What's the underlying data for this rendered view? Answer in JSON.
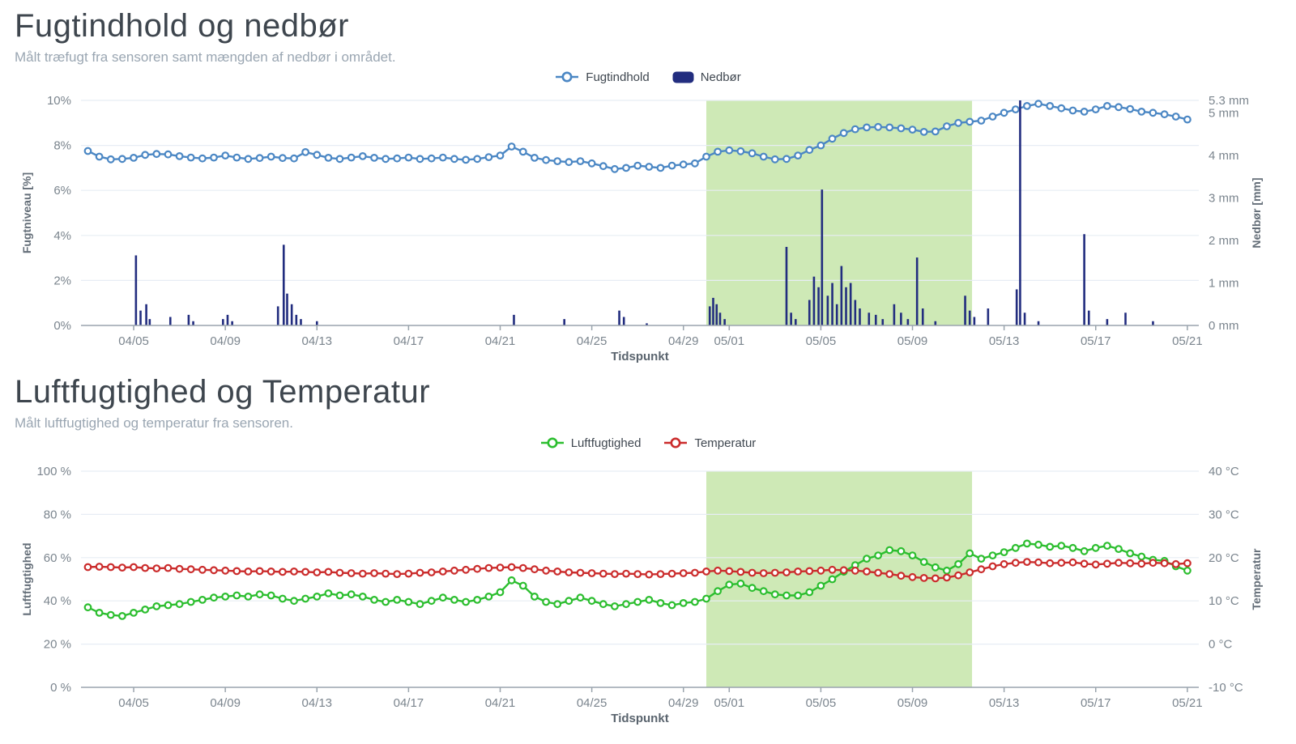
{
  "chart_data": [
    {
      "type": "line+bar",
      "title": "Fugtindhold og nedbør",
      "subtitle": "Målt træfugt fra sensoren samt mængden af nedbør i området.",
      "x_label": "Tidspunkt",
      "x_start_date": "04/03",
      "x_step_days": 0.5,
      "x_tick_days": [
        2,
        6,
        10,
        14,
        18,
        22,
        26,
        28,
        32,
        36,
        40,
        44,
        48
      ],
      "x_tick_labels": [
        "04/05",
        "04/09",
        "04/13",
        "04/17",
        "04/21",
        "04/25",
        "04/29",
        "05/01",
        "05/05",
        "05/09",
        "05/13",
        "05/17",
        "05/21"
      ],
      "left_axis": {
        "label": "Fugtniveau [%]",
        "min": 0,
        "max": 10,
        "tick_values": [
          0,
          2,
          4,
          6,
          8,
          10
        ],
        "tick_labels": [
          "0%",
          "2%",
          "4%",
          "6%",
          "8%",
          "10%"
        ]
      },
      "right_axis": {
        "label": "Nedbør [mm]",
        "min": 0,
        "max": 5.3,
        "tick_values": [
          0,
          1,
          2,
          3,
          4,
          5,
          5.3
        ],
        "tick_labels": [
          "0 mm",
          "1 mm",
          "2 mm",
          "3 mm",
          "4 mm",
          "5 mm",
          "5.3 mm"
        ]
      },
      "highlight_region": {
        "start_day": 27,
        "end_day": 38.6,
        "color": "#cee9b6"
      },
      "series": [
        {
          "name": "Fugtindhold",
          "type": "line",
          "axis": "left",
          "unit": "%",
          "color": "#4b87c4",
          "values": [
            7.75,
            7.5,
            7.38,
            7.4,
            7.45,
            7.58,
            7.62,
            7.6,
            7.52,
            7.46,
            7.42,
            7.46,
            7.55,
            7.46,
            7.4,
            7.44,
            7.5,
            7.44,
            7.42,
            7.7,
            7.58,
            7.45,
            7.4,
            7.46,
            7.52,
            7.45,
            7.4,
            7.42,
            7.46,
            7.4,
            7.42,
            7.46,
            7.4,
            7.36,
            7.4,
            7.48,
            7.55,
            7.95,
            7.72,
            7.45,
            7.35,
            7.3,
            7.26,
            7.3,
            7.2,
            7.08,
            6.95,
            7.0,
            7.1,
            7.05,
            7.0,
            7.1,
            7.15,
            7.2,
            7.5,
            7.72,
            7.78,
            7.74,
            7.65,
            7.5,
            7.38,
            7.4,
            7.55,
            7.8,
            8.0,
            8.3,
            8.55,
            8.72,
            8.8,
            8.82,
            8.8,
            8.76,
            8.7,
            8.6,
            8.62,
            8.85,
            9.0,
            9.05,
            9.1,
            9.28,
            9.45,
            9.6,
            9.75,
            9.85,
            9.75,
            9.65,
            9.55,
            9.5,
            9.6,
            9.75,
            9.7,
            9.62,
            9.5,
            9.45,
            9.38,
            9.28,
            9.15
          ]
        },
        {
          "name": "Nedbør",
          "type": "bar",
          "axis": "right",
          "unit": "mm",
          "color": "#222d7f",
          "points": [
            [
              2.1,
              1.65
            ],
            [
              2.3,
              0.35
            ],
            [
              2.55,
              0.5
            ],
            [
              2.7,
              0.15
            ],
            [
              3.6,
              0.2
            ],
            [
              4.4,
              0.25
            ],
            [
              4.6,
              0.1
            ],
            [
              5.9,
              0.15
            ],
            [
              6.1,
              0.25
            ],
            [
              6.3,
              0.1
            ],
            [
              8.3,
              0.45
            ],
            [
              8.55,
              1.9
            ],
            [
              8.7,
              0.75
            ],
            [
              8.9,
              0.5
            ],
            [
              9.1,
              0.25
            ],
            [
              9.3,
              0.15
            ],
            [
              10.0,
              0.1
            ],
            [
              18.6,
              0.25
            ],
            [
              20.8,
              0.15
            ],
            [
              23.2,
              0.35
            ],
            [
              23.4,
              0.2
            ],
            [
              24.4,
              0.05
            ],
            [
              27.15,
              0.45
            ],
            [
              27.3,
              0.65
            ],
            [
              27.45,
              0.5
            ],
            [
              27.6,
              0.3
            ],
            [
              27.8,
              0.15
            ],
            [
              30.5,
              1.85
            ],
            [
              30.7,
              0.3
            ],
            [
              30.9,
              0.15
            ],
            [
              31.5,
              0.6
            ],
            [
              31.7,
              1.15
            ],
            [
              31.9,
              0.9
            ],
            [
              32.05,
              3.2
            ],
            [
              32.3,
              0.7
            ],
            [
              32.5,
              1.0
            ],
            [
              32.7,
              0.5
            ],
            [
              32.9,
              1.4
            ],
            [
              33.1,
              0.9
            ],
            [
              33.3,
              1.0
            ],
            [
              33.5,
              0.6
            ],
            [
              33.7,
              0.4
            ],
            [
              34.1,
              0.3
            ],
            [
              34.4,
              0.25
            ],
            [
              34.7,
              0.15
            ],
            [
              35.2,
              0.5
            ],
            [
              35.5,
              0.3
            ],
            [
              35.8,
              0.15
            ],
            [
              36.2,
              1.6
            ],
            [
              36.45,
              0.4
            ],
            [
              37.0,
              0.1
            ],
            [
              38.3,
              0.7
            ],
            [
              38.5,
              0.35
            ],
            [
              38.7,
              0.2
            ],
            [
              39.3,
              0.4
            ],
            [
              40.55,
              0.85
            ],
            [
              40.7,
              5.3
            ],
            [
              40.9,
              0.3
            ],
            [
              41.5,
              0.1
            ],
            [
              43.5,
              2.15
            ],
            [
              43.7,
              0.35
            ],
            [
              44.5,
              0.15
            ],
            [
              45.3,
              0.3
            ],
            [
              46.5,
              0.1
            ]
          ]
        }
      ]
    },
    {
      "type": "line",
      "title": "Luftfugtighed og Temperatur",
      "subtitle": "Målt luftfugtighed og temperatur fra sensoren.",
      "x_label": "Tidspunkt",
      "x_start_date": "04/03",
      "x_step_days": 0.5,
      "x_tick_days": [
        2,
        6,
        10,
        14,
        18,
        22,
        26,
        28,
        32,
        36,
        40,
        44,
        48
      ],
      "x_tick_labels": [
        "04/05",
        "04/09",
        "04/13",
        "04/17",
        "04/21",
        "04/25",
        "04/29",
        "05/01",
        "05/05",
        "05/09",
        "05/13",
        "05/17",
        "05/21"
      ],
      "left_axis": {
        "label": "Luftfugtighed",
        "min": 0,
        "max": 100,
        "tick_values": [
          0,
          20,
          40,
          60,
          80,
          100
        ],
        "tick_labels": [
          "0 %",
          "20 %",
          "40 %",
          "60 %",
          "80 %",
          "100 %"
        ]
      },
      "right_axis": {
        "label": "Temperatur",
        "min": -10,
        "max": 40,
        "tick_values": [
          -10,
          0,
          10,
          20,
          30,
          40
        ],
        "tick_labels": [
          "-10 °C",
          "0 °C",
          "10 °C",
          "20 °C",
          "30 °C",
          "40 °C"
        ]
      },
      "highlight_region": {
        "start_day": 27,
        "end_day": 38.6,
        "color": "#cee9b6"
      },
      "series": [
        {
          "name": "Luftfugtighed",
          "type": "line",
          "axis": "left",
          "unit": "%",
          "color": "#2cbe2f",
          "values": [
            37,
            34.5,
            33.5,
            33,
            34.5,
            36,
            37.5,
            38,
            38.5,
            39.5,
            40.5,
            41.5,
            42,
            42.5,
            42,
            43,
            42.5,
            41,
            40,
            41,
            42,
            43.5,
            42.5,
            43,
            42,
            40.5,
            39.5,
            40.5,
            39.5,
            38.5,
            40,
            41.5,
            40.5,
            39.5,
            40.5,
            42,
            44,
            49.5,
            47,
            42,
            39.5,
            38.5,
            40,
            41.5,
            40,
            38.5,
            37.5,
            38.5,
            39.5,
            40.5,
            39,
            38,
            39,
            39.5,
            41,
            44.5,
            47.5,
            48,
            46,
            44.5,
            43,
            42.5,
            42.5,
            44,
            47,
            50,
            53.5,
            56.5,
            59.5,
            61,
            63.5,
            63,
            61,
            58,
            55.5,
            54,
            57,
            62,
            59.5,
            61,
            62.5,
            64.5,
            66.5,
            66,
            65,
            65.5,
            64.5,
            63,
            64.5,
            65.5,
            64,
            62,
            60.5,
            59,
            58.5,
            56,
            54
          ]
        },
        {
          "name": "Temperatur",
          "type": "line",
          "axis": "right",
          "unit": "°C",
          "color": "#cb2c2c",
          "values": [
            17.8,
            17.9,
            17.8,
            17.7,
            17.8,
            17.6,
            17.5,
            17.6,
            17.4,
            17.3,
            17.2,
            17.1,
            17.0,
            16.9,
            16.8,
            16.9,
            16.8,
            16.7,
            16.8,
            16.7,
            16.6,
            16.7,
            16.5,
            16.4,
            16.3,
            16.4,
            16.3,
            16.2,
            16.3,
            16.5,
            16.6,
            16.8,
            17.0,
            17.2,
            17.4,
            17.6,
            17.7,
            17.8,
            17.6,
            17.3,
            17.0,
            16.8,
            16.6,
            16.5,
            16.4,
            16.3,
            16.2,
            16.3,
            16.2,
            16.1,
            16.2,
            16.3,
            16.4,
            16.5,
            16.8,
            17.0,
            16.9,
            16.7,
            16.5,
            16.4,
            16.5,
            16.6,
            16.8,
            16.9,
            17.0,
            17.2,
            17.1,
            17.0,
            16.8,
            16.5,
            16.2,
            15.8,
            15.5,
            15.3,
            15.2,
            15.4,
            15.9,
            16.6,
            17.3,
            18.0,
            18.5,
            18.8,
            19.0,
            18.9,
            18.7,
            18.8,
            18.9,
            18.6,
            18.4,
            18.6,
            18.8,
            18.7,
            18.6,
            18.8,
            18.7,
            18.5,
            18.7
          ]
        }
      ]
    }
  ]
}
